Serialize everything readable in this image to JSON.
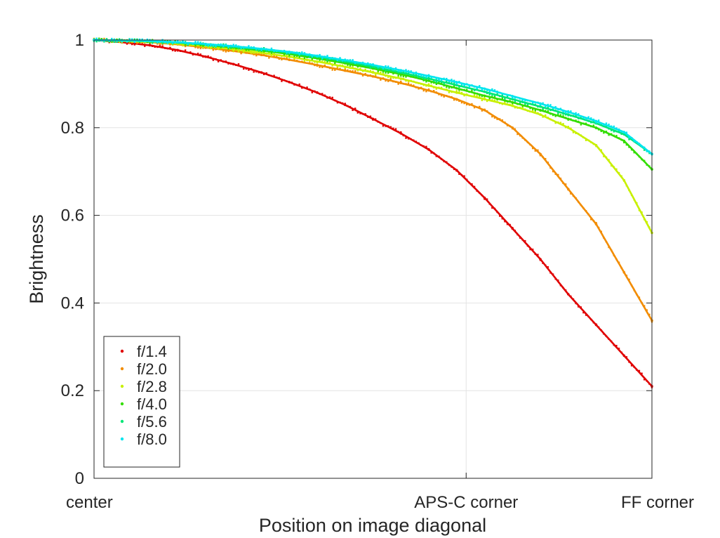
{
  "chart_data": {
    "type": "scatter",
    "title": "",
    "xlabel": "Position on image diagonal",
    "ylabel": "Brightness",
    "xlim": [
      0,
      1
    ],
    "ylim": [
      0,
      1
    ],
    "grid": true,
    "legend_position": "bottom-left",
    "x_ticks": [
      {
        "value": 0,
        "label": "center"
      },
      {
        "value": 0.667,
        "label": "APS-C corner"
      },
      {
        "value": 1,
        "label": "FF corner"
      }
    ],
    "y_ticks": [
      {
        "value": 0,
        "label": "0"
      },
      {
        "value": 0.2,
        "label": "0.2"
      },
      {
        "value": 0.4,
        "label": "0.4"
      },
      {
        "value": 0.6,
        "label": "0.6"
      },
      {
        "value": 0.8,
        "label": "0.8"
      },
      {
        "value": 1,
        "label": "1"
      }
    ],
    "x": [
      0,
      0.05,
      0.1,
      0.15,
      0.2,
      0.25,
      0.3,
      0.35,
      0.4,
      0.45,
      0.5,
      0.55,
      0.6,
      0.65,
      0.7,
      0.75,
      0.8,
      0.85,
      0.9,
      0.95,
      1.0
    ],
    "series": [
      {
        "name": "f/1.4",
        "color": "#e00000",
        "values": [
          1.0,
          0.995,
          0.988,
          0.977,
          0.962,
          0.945,
          0.926,
          0.904,
          0.88,
          0.852,
          0.82,
          0.787,
          0.75,
          0.703,
          0.64,
          0.57,
          0.5,
          0.42,
          0.35,
          0.28,
          0.21
        ]
      },
      {
        "name": "f/2.0",
        "color": "#f28c00",
        "values": [
          1.0,
          0.998,
          0.995,
          0.99,
          0.983,
          0.975,
          0.966,
          0.955,
          0.943,
          0.93,
          0.917,
          0.902,
          0.885,
          0.865,
          0.84,
          0.8,
          0.74,
          0.66,
          0.58,
          0.47,
          0.36
        ]
      },
      {
        "name": "f/2.8",
        "color": "#c8f000",
        "values": [
          1.0,
          0.998,
          0.996,
          0.992,
          0.986,
          0.979,
          0.971,
          0.962,
          0.951,
          0.939,
          0.926,
          0.912,
          0.896,
          0.88,
          0.865,
          0.85,
          0.83,
          0.8,
          0.76,
          0.68,
          0.56
        ]
      },
      {
        "name": "f/4.0",
        "color": "#33dd00",
        "values": [
          1.0,
          0.999,
          0.997,
          0.994,
          0.989,
          0.983,
          0.976,
          0.968,
          0.958,
          0.947,
          0.935,
          0.922,
          0.907,
          0.89,
          0.873,
          0.858,
          0.84,
          0.82,
          0.8,
          0.77,
          0.705
        ]
      },
      {
        "name": "f/5.6",
        "color": "#00e676",
        "values": [
          1.0,
          0.999,
          0.997,
          0.994,
          0.99,
          0.985,
          0.979,
          0.971,
          0.962,
          0.951,
          0.939,
          0.926,
          0.912,
          0.897,
          0.882,
          0.865,
          0.848,
          0.83,
          0.81,
          0.785,
          0.74
        ]
      },
      {
        "name": "f/8.0",
        "color": "#00e5ee",
        "values": [
          1.0,
          0.999,
          0.998,
          0.995,
          0.991,
          0.986,
          0.98,
          0.973,
          0.964,
          0.954,
          0.943,
          0.931,
          0.918,
          0.904,
          0.889,
          0.872,
          0.855,
          0.836,
          0.815,
          0.79,
          0.74
        ]
      }
    ]
  }
}
